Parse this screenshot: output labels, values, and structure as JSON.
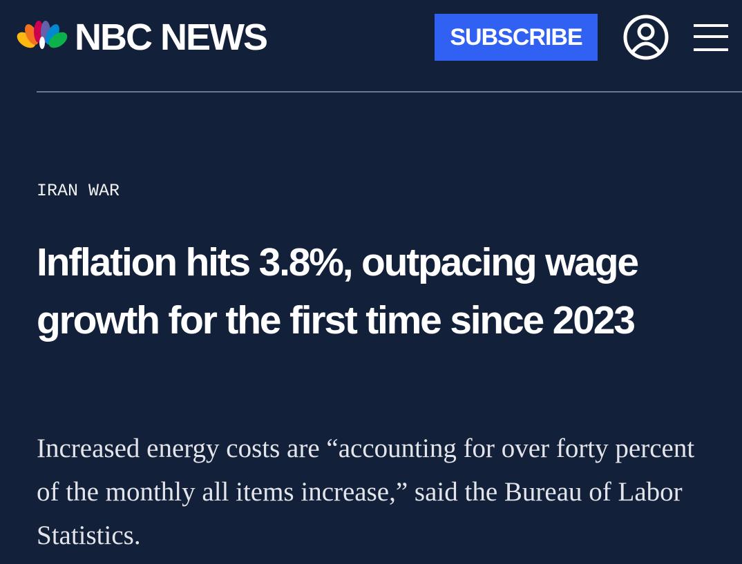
{
  "header": {
    "logo": "NBC NEWS",
    "subscribe": "SUBSCRIBE"
  },
  "article": {
    "label": "IRAN WAR",
    "headline": "Inflation hits 3.8%, outpacing wage growth for the first time since 2023",
    "dek": "Increased energy costs are “accounting for over forty percent of the monthly all items increase,” said the Bureau of Labor Statistics."
  }
}
